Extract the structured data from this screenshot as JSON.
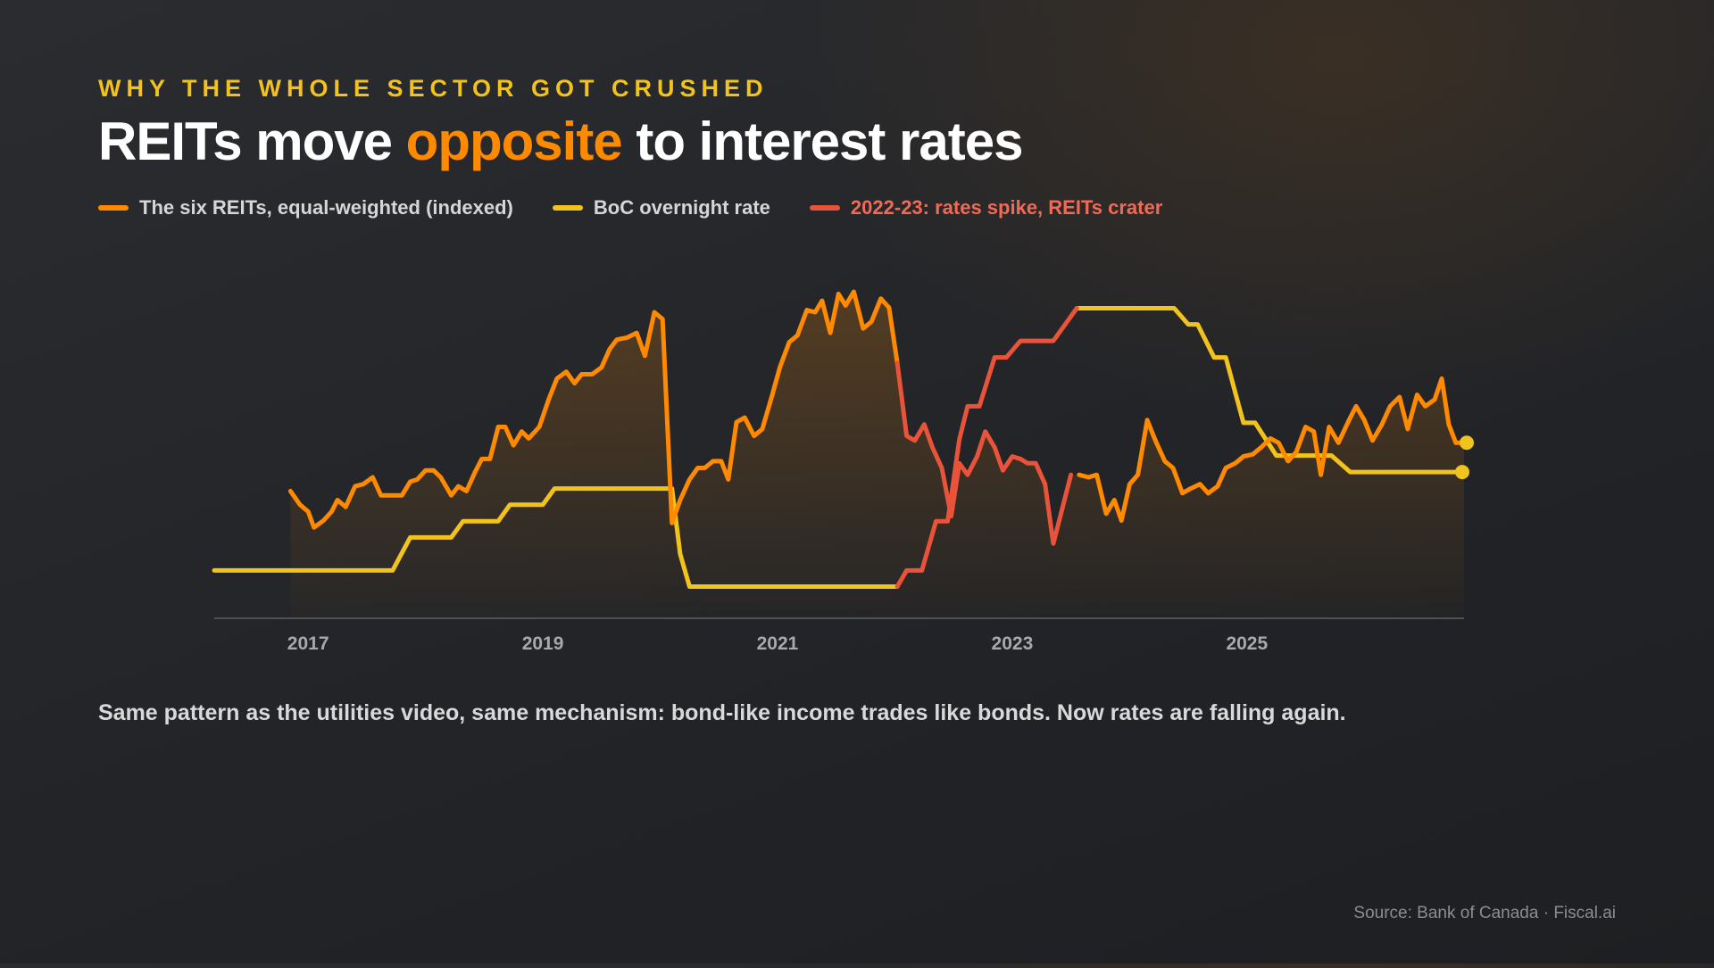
{
  "eyebrow": "WHY THE WHOLE SECTOR GOT CRUSHED",
  "title": {
    "part1": "REITs move ",
    "highlight": "opposite",
    "part2": " to interest rates"
  },
  "legend": [
    {
      "label": "The six REITs, equal-weighted (indexed)",
      "color": "#ff8a00"
    },
    {
      "label": "BoC overnight rate",
      "color": "#f2c21d"
    },
    {
      "label": "2022-23: rates spike, REITs crater",
      "color": "#e8533a"
    }
  ],
  "caption": "Same pattern as the utilities video, same mechanism: bond-like income trades like bonds. Now rates are falling again.",
  "source": "Source: Bank of Canada · Fiscal.ai",
  "colors": {
    "reits": "#ff8a00",
    "rate": "#f2c21d",
    "spike": "#e8533a",
    "axis": "#5c5f64"
  },
  "chart_data": {
    "type": "line",
    "xlabel": "",
    "ylabel": "",
    "xlim": [
      2016.2,
      2026.85
    ],
    "x_ticks": [
      2017,
      2019,
      2021,
      2023,
      2025
    ],
    "grid": false,
    "legend_position": "top-left",
    "highlight_period": "2022-23",
    "series": [
      {
        "name": "The six REITs, equal-weighted (indexed)",
        "y_domain": [
          0,
          100
        ],
        "points": [
          [
            2016.85,
            36.0
          ],
          [
            2016.93,
            31.6
          ],
          [
            2017.0,
            29.4
          ],
          [
            2017.05,
            24.3
          ],
          [
            2017.13,
            26.5
          ],
          [
            2017.2,
            29.4
          ],
          [
            2017.25,
            33.1
          ],
          [
            2017.32,
            30.9
          ],
          [
            2017.4,
            37.5
          ],
          [
            2017.47,
            38.2
          ],
          [
            2017.55,
            40.4
          ],
          [
            2017.62,
            34.6
          ],
          [
            2017.72,
            34.6
          ],
          [
            2017.8,
            34.6
          ],
          [
            2017.87,
            39.0
          ],
          [
            2017.93,
            39.7
          ],
          [
            2018.0,
            42.6
          ],
          [
            2018.07,
            42.6
          ],
          [
            2018.13,
            40.4
          ],
          [
            2018.22,
            34.6
          ],
          [
            2018.28,
            37.5
          ],
          [
            2018.35,
            36.0
          ],
          [
            2018.42,
            41.9
          ],
          [
            2018.48,
            46.3
          ],
          [
            2018.55,
            46.3
          ],
          [
            2018.62,
            56.6
          ],
          [
            2018.68,
            56.6
          ],
          [
            2018.75,
            50.7
          ],
          [
            2018.82,
            55.1
          ],
          [
            2018.88,
            52.9
          ],
          [
            2018.97,
            56.6
          ],
          [
            2019.05,
            65.4
          ],
          [
            2019.12,
            72.1
          ],
          [
            2019.2,
            74.3
          ],
          [
            2019.27,
            70.6
          ],
          [
            2019.33,
            73.5
          ],
          [
            2019.42,
            73.5
          ],
          [
            2019.5,
            75.7
          ],
          [
            2019.57,
            81.6
          ],
          [
            2019.63,
            84.6
          ],
          [
            2019.72,
            85.3
          ],
          [
            2019.8,
            86.8
          ],
          [
            2019.87,
            79.4
          ],
          [
            2019.95,
            93.4
          ],
          [
            2020.02,
            91.2
          ],
          [
            2020.1,
            25.7
          ],
          [
            2020.17,
            33.1
          ],
          [
            2020.25,
            39.7
          ],
          [
            2020.32,
            43.4
          ],
          [
            2020.38,
            43.4
          ],
          [
            2020.45,
            45.6
          ],
          [
            2020.52,
            45.6
          ],
          [
            2020.58,
            39.7
          ],
          [
            2020.65,
            58.1
          ],
          [
            2020.72,
            59.6
          ],
          [
            2020.8,
            53.7
          ],
          [
            2020.87,
            55.9
          ],
          [
            2020.95,
            66.2
          ],
          [
            2021.02,
            75.7
          ],
          [
            2021.1,
            83.8
          ],
          [
            2021.17,
            86.0
          ],
          [
            2021.25,
            94.1
          ],
          [
            2021.32,
            93.4
          ],
          [
            2021.38,
            97.1
          ],
          [
            2021.45,
            86.8
          ],
          [
            2021.52,
            99.3
          ],
          [
            2021.58,
            95.6
          ],
          [
            2021.65,
            100.0
          ],
          [
            2021.73,
            88.2
          ],
          [
            2021.8,
            90.4
          ],
          [
            2021.88,
            97.8
          ],
          [
            2021.95,
            94.9
          ],
          [
            2022.02,
            77.2
          ],
          [
            2022.1,
            53.7
          ],
          [
            2022.17,
            52.2
          ],
          [
            2022.25,
            57.4
          ],
          [
            2022.32,
            50.0
          ],
          [
            2022.4,
            43.4
          ],
          [
            2022.48,
            27.9
          ],
          [
            2022.55,
            44.9
          ],
          [
            2022.62,
            41.2
          ],
          [
            2022.7,
            47.1
          ],
          [
            2022.77,
            55.1
          ],
          [
            2022.85,
            50.0
          ],
          [
            2022.92,
            42.6
          ],
          [
            2023.0,
            47.1
          ],
          [
            2023.07,
            46.3
          ],
          [
            2023.13,
            44.9
          ],
          [
            2023.2,
            44.9
          ],
          [
            2023.28,
            38.2
          ],
          [
            2023.35,
            19.1
          ],
          [
            2023.42,
            29.4
          ],
          [
            2023.5,
            41.2
          ],
          [
            2023.57,
            41.2
          ],
          [
            2023.65,
            40.4
          ],
          [
            2023.72,
            41.2
          ],
          [
            2023.8,
            28.7
          ],
          [
            2023.87,
            33.1
          ],
          [
            2023.93,
            26.5
          ],
          [
            2024.0,
            38.2
          ],
          [
            2024.07,
            41.2
          ],
          [
            2024.15,
            58.8
          ],
          [
            2024.22,
            52.2
          ],
          [
            2024.3,
            45.6
          ],
          [
            2024.37,
            43.4
          ],
          [
            2024.45,
            35.3
          ],
          [
            2024.52,
            36.8
          ],
          [
            2024.6,
            38.2
          ],
          [
            2024.67,
            35.3
          ],
          [
            2024.75,
            37.5
          ],
          [
            2024.82,
            43.4
          ],
          [
            2024.9,
            44.9
          ],
          [
            2024.97,
            47.1
          ],
          [
            2025.05,
            47.8
          ],
          [
            2025.12,
            50.0
          ],
          [
            2025.2,
            52.9
          ],
          [
            2025.27,
            51.5
          ],
          [
            2025.35,
            45.6
          ],
          [
            2025.42,
            48.5
          ],
          [
            2025.5,
            56.6
          ],
          [
            2025.57,
            55.1
          ],
          [
            2025.63,
            41.2
          ],
          [
            2025.7,
            56.6
          ],
          [
            2025.78,
            51.5
          ],
          [
            2025.87,
            58.8
          ],
          [
            2025.93,
            63.2
          ],
          [
            2026.0,
            58.8
          ],
          [
            2026.07,
            52.2
          ],
          [
            2026.15,
            57.4
          ],
          [
            2026.22,
            63.2
          ],
          [
            2026.3,
            66.2
          ],
          [
            2026.37,
            55.9
          ],
          [
            2026.45,
            66.9
          ],
          [
            2026.52,
            63.2
          ],
          [
            2026.6,
            65.4
          ],
          [
            2026.66,
            72.1
          ],
          [
            2026.72,
            57.4
          ],
          [
            2026.78,
            51.5
          ],
          [
            2026.85,
            51.5
          ]
        ]
      },
      {
        "name": "BoC overnight rate",
        "y_domain": [
          0,
          100
        ],
        "points": [
          [
            2016.2,
            10.5
          ],
          [
            2017.72,
            10.5
          ],
          [
            2017.87,
            21.1
          ],
          [
            2018.22,
            21.1
          ],
          [
            2018.32,
            26.3
          ],
          [
            2018.62,
            26.3
          ],
          [
            2018.72,
            31.6
          ],
          [
            2019.0,
            31.6
          ],
          [
            2019.1,
            36.8
          ],
          [
            2020.1,
            36.8
          ],
          [
            2020.17,
            15.8
          ],
          [
            2020.25,
            5.3
          ],
          [
            2022.02,
            5.3
          ],
          [
            2022.1,
            10.5
          ],
          [
            2022.23,
            10.5
          ],
          [
            2022.35,
            26.3
          ],
          [
            2022.45,
            26.3
          ],
          [
            2022.55,
            52.6
          ],
          [
            2022.62,
            63.2
          ],
          [
            2022.72,
            63.2
          ],
          [
            2022.85,
            78.9
          ],
          [
            2022.95,
            78.9
          ],
          [
            2023.07,
            84.2
          ],
          [
            2023.35,
            84.2
          ],
          [
            2023.55,
            94.7
          ],
          [
            2024.38,
            94.7
          ],
          [
            2024.5,
            89.5
          ],
          [
            2024.58,
            89.5
          ],
          [
            2024.72,
            78.9
          ],
          [
            2024.82,
            78.9
          ],
          [
            2024.97,
            57.9
          ],
          [
            2025.07,
            57.9
          ],
          [
            2025.25,
            47.4
          ],
          [
            2025.72,
            47.4
          ],
          [
            2025.88,
            42.1
          ],
          [
            2026.85,
            42.1
          ]
        ]
      }
    ],
    "highlight_range": [
      2022.02,
      2023.55
    ]
  }
}
